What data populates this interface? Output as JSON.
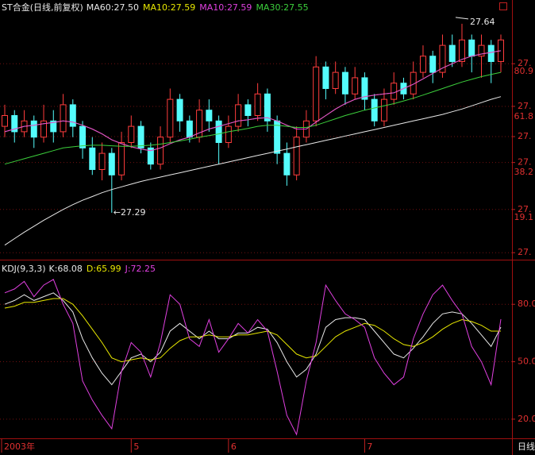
{
  "chart_data": [
    {
      "type": "candlestick",
      "title": "ST合金(日线,前复权)",
      "up_color": "#ff3c3c",
      "down_color": "#54fcfc",
      "categories": [
        "2003年",
        null,
        null,
        null,
        null,
        null,
        null,
        null,
        null,
        null,
        null,
        null,
        null,
        "5",
        null,
        null,
        null,
        null,
        null,
        null,
        null,
        null,
        null,
        "6",
        null,
        null,
        null,
        null,
        null,
        null,
        null,
        null,
        null,
        null,
        null,
        null,
        null,
        "7",
        null,
        null,
        null,
        null,
        null,
        null,
        null,
        null,
        null,
        null,
        null,
        null,
        null,
        null
      ],
      "period_label": "日线",
      "candles": {
        "open": [
          27.45,
          27.47,
          27.44,
          27.46,
          27.43,
          27.46,
          27.44,
          27.49,
          27.45,
          27.41,
          27.37,
          27.4,
          27.36,
          27.42,
          27.45,
          27.41,
          27.38,
          27.43,
          27.5,
          27.46,
          27.43,
          27.48,
          27.46,
          27.42,
          27.45,
          27.49,
          27.47,
          27.51,
          27.46,
          27.4,
          27.36,
          27.43,
          27.46,
          27.56,
          27.52,
          27.55,
          27.51,
          27.54,
          27.5,
          27.46,
          27.5,
          27.53,
          27.51,
          27.55,
          27.58,
          27.55,
          27.6,
          27.57,
          27.61,
          27.58,
          27.6,
          27.57
        ],
        "high": [
          27.49,
          27.48,
          27.48,
          27.47,
          27.49,
          27.48,
          27.51,
          27.5,
          27.46,
          27.43,
          27.42,
          27.41,
          27.44,
          27.47,
          27.46,
          27.42,
          27.45,
          27.52,
          27.51,
          27.47,
          27.5,
          27.5,
          27.47,
          27.47,
          27.51,
          27.5,
          27.53,
          27.52,
          27.47,
          27.42,
          27.45,
          27.48,
          27.58,
          27.57,
          27.57,
          27.56,
          27.56,
          27.55,
          27.51,
          27.52,
          27.55,
          27.54,
          27.57,
          27.6,
          27.59,
          27.62,
          27.62,
          27.64,
          27.62,
          27.62,
          27.61,
          27.62
        ],
        "low": [
          27.43,
          27.42,
          27.43,
          27.41,
          27.42,
          27.42,
          27.43,
          27.43,
          27.39,
          27.36,
          27.35,
          27.29,
          27.35,
          27.41,
          27.4,
          27.37,
          27.37,
          27.42,
          27.44,
          27.42,
          27.42,
          27.44,
          27.38,
          27.41,
          27.44,
          27.45,
          27.46,
          27.44,
          27.38,
          27.34,
          27.35,
          27.42,
          27.45,
          27.5,
          27.51,
          27.49,
          27.5,
          27.48,
          27.45,
          27.45,
          27.49,
          27.5,
          27.5,
          27.54,
          27.53,
          27.54,
          27.56,
          27.56,
          27.55,
          27.54,
          27.53,
          27.55
        ],
        "close": [
          27.47,
          27.44,
          27.46,
          27.43,
          27.46,
          27.44,
          27.49,
          27.45,
          27.41,
          27.37,
          27.4,
          27.36,
          27.42,
          27.45,
          27.41,
          27.38,
          27.43,
          27.5,
          27.46,
          27.43,
          27.48,
          27.46,
          27.42,
          27.45,
          27.49,
          27.47,
          27.51,
          27.46,
          27.4,
          27.36,
          27.43,
          27.46,
          27.56,
          27.52,
          27.55,
          27.51,
          27.54,
          27.5,
          27.46,
          27.5,
          27.53,
          27.51,
          27.55,
          27.58,
          27.55,
          27.6,
          27.57,
          27.61,
          27.58,
          27.6,
          27.57,
          27.61
        ]
      },
      "series": [
        {
          "name": "MA60:27.50",
          "color": "#e8e8e8",
          "values": [
            27.23,
            27.242,
            27.254,
            27.265,
            27.276,
            27.286,
            27.296,
            27.305,
            27.313,
            27.32,
            27.327,
            27.333,
            27.338,
            27.343,
            27.348,
            27.352,
            27.356,
            27.36,
            27.364,
            27.368,
            27.372,
            27.376,
            27.38,
            27.384,
            27.388,
            27.392,
            27.396,
            27.4,
            27.404,
            27.408,
            27.412,
            27.416,
            27.42,
            27.424,
            27.428,
            27.432,
            27.436,
            27.44,
            27.444,
            27.448,
            27.452,
            27.456,
            27.46,
            27.464,
            27.468,
            27.472,
            27.477,
            27.482,
            27.488,
            27.494,
            27.5,
            27.505
          ]
        },
        {
          "name": "MA10:27.59",
          "color": "#e8e800",
          "values": [
            27.44,
            27.445,
            27.45,
            27.452,
            27.455,
            27.457,
            27.46,
            27.458,
            27.452,
            27.445,
            27.436,
            27.425,
            27.418,
            27.412,
            27.408,
            27.405,
            27.41,
            27.418,
            27.425,
            27.43,
            27.438,
            27.445,
            27.45,
            27.455,
            27.46,
            27.462,
            27.465,
            27.466,
            27.46,
            27.452,
            27.445,
            27.445,
            27.458,
            27.47,
            27.482,
            27.492,
            27.5,
            27.505,
            27.508,
            27.51,
            27.512,
            27.52,
            27.528,
            27.538,
            27.548,
            27.558,
            27.566,
            27.574,
            27.58,
            27.584,
            27.587,
            27.59
          ]
        },
        {
          "name": "MA10:27.59",
          "color": "#e040e0",
          "values": [
            27.44,
            27.445,
            27.45,
            27.452,
            27.455,
            27.457,
            27.46,
            27.458,
            27.452,
            27.445,
            27.436,
            27.425,
            27.418,
            27.412,
            27.408,
            27.405,
            27.41,
            27.418,
            27.425,
            27.43,
            27.438,
            27.445,
            27.45,
            27.455,
            27.46,
            27.462,
            27.465,
            27.466,
            27.46,
            27.452,
            27.445,
            27.445,
            27.458,
            27.47,
            27.482,
            27.492,
            27.5,
            27.505,
            27.508,
            27.51,
            27.512,
            27.52,
            27.528,
            27.538,
            27.548,
            27.558,
            27.566,
            27.574,
            27.58,
            27.584,
            27.587,
            27.59
          ]
        },
        {
          "name": "MA30:27.55",
          "color": "#3cd03c",
          "values": [
            27.38,
            27.385,
            27.39,
            27.395,
            27.4,
            27.405,
            27.41,
            27.412,
            27.414,
            27.415,
            27.415,
            27.414,
            27.413,
            27.413,
            27.414,
            27.415,
            27.417,
            27.42,
            27.423,
            27.426,
            27.43,
            27.433,
            27.436,
            27.44,
            27.443,
            27.446,
            27.45,
            27.452,
            27.452,
            27.45,
            27.448,
            27.448,
            27.452,
            27.458,
            27.464,
            27.47,
            27.475,
            27.48,
            27.484,
            27.488,
            27.492,
            27.497,
            27.502,
            27.508,
            27.514,
            27.52,
            27.526,
            27.532,
            27.537,
            27.542,
            27.546,
            27.55
          ]
        }
      ],
      "high_label": "27.64",
      "low_label": "←27.29",
      "ylim": [
        27.206,
        27.684
      ],
      "yticks": [
        {
          "value": 27.566,
          "label": "27."
        },
        {
          "value": 27.487,
          "label": "27."
        },
        {
          "value": 27.431,
          "label": "27."
        },
        {
          "value": 27.383,
          "label": "27."
        },
        {
          "value": 27.296,
          "label": "27."
        },
        {
          "value": 27.216,
          "label": "27."
        }
      ],
      "fib_levels": [
        80.9,
        61.8,
        38.2,
        19.1
      ],
      "fib_color": "#e03030",
      "grid": true
    },
    {
      "type": "line",
      "title": "KDJ(9,3,3)",
      "series": [
        {
          "name": "K:68.08",
          "color": "#e8e8e8",
          "values": [
            80,
            82,
            85,
            82,
            84,
            86,
            82,
            76,
            62,
            52,
            44,
            38,
            45,
            52,
            54,
            50,
            55,
            66,
            70,
            66,
            62,
            66,
            62,
            62,
            65,
            65,
            68,
            67,
            60,
            50,
            42,
            46,
            54,
            68,
            72,
            73,
            73,
            72,
            66,
            60,
            54,
            52,
            57,
            63,
            70,
            75,
            76,
            75,
            70,
            64,
            58,
            68.08
          ]
        },
        {
          "name": "D:65.99",
          "color": "#e8e800",
          "values": [
            78,
            79,
            81,
            81,
            82,
            83,
            83,
            80,
            74,
            67,
            60,
            52,
            50,
            51,
            52,
            51,
            52,
            57,
            61,
            63,
            63,
            64,
            63,
            63,
            64,
            64,
            65,
            66,
            64,
            59,
            54,
            52,
            53,
            58,
            63,
            66,
            68,
            70,
            69,
            66,
            62,
            59,
            58,
            60,
            63,
            67,
            70,
            72,
            71,
            69,
            66,
            65.99
          ]
        },
        {
          "name": "J:72.25",
          "color": "#e040e0",
          "values": [
            86,
            88,
            92,
            84,
            90,
            93,
            80,
            70,
            40,
            30,
            22,
            15,
            45,
            60,
            55,
            42,
            60,
            85,
            80,
            62,
            58,
            72,
            55,
            62,
            70,
            65,
            72,
            66,
            45,
            22,
            12,
            40,
            60,
            90,
            82,
            75,
            72,
            68,
            52,
            44,
            38,
            42,
            62,
            75,
            85,
            90,
            82,
            75,
            58,
            50,
            38,
            72.25
          ]
        }
      ],
      "ylim": [
        10,
        100
      ],
      "yticks": [
        {
          "value": 80,
          "label": "80.0"
        },
        {
          "value": 50,
          "label": "50.0"
        },
        {
          "value": 20,
          "label": "20.0"
        }
      ],
      "grid": true
    }
  ]
}
